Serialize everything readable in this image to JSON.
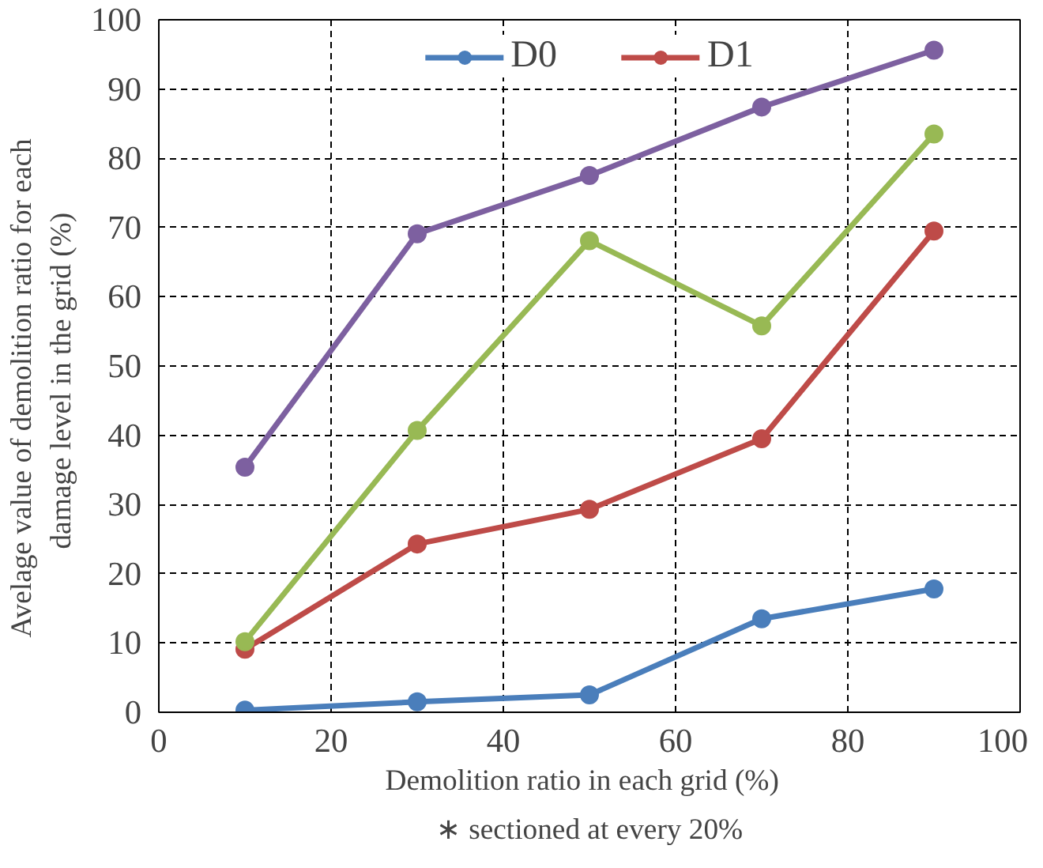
{
  "chart_data": {
    "type": "line",
    "xlabel": "Demolition  ratio in each grid  (%)",
    "ylabel": "Avelage  value  of  demolition  ratio  for  each\ndamage level  in  the  grid  (%)",
    "annotations": [
      "∗ sectioned at every 20%"
    ],
    "x": [
      10,
      30,
      50,
      70,
      90
    ],
    "series": [
      {
        "name": "D0",
        "color": "#4a7ebb",
        "values": [
          0.3,
          1.5,
          2.5,
          13.5,
          17.8
        ]
      },
      {
        "name": "D1",
        "color": "#be4b48",
        "values": [
          9.1,
          24.3,
          29.3,
          39.5,
          69.5
        ]
      },
      {
        "color": "#98b954",
        "values": [
          10.2,
          40.7,
          68.1,
          55.8,
          83.5
        ]
      },
      {
        "color": "#7d60a0",
        "values": [
          35.4,
          69.1,
          77.5,
          87.4,
          95.6
        ]
      }
    ],
    "xlim": [
      0,
      100
    ],
    "ylim": [
      0,
      100
    ],
    "xticks": [
      0,
      20,
      40,
      60,
      80,
      100
    ],
    "yticks": [
      0,
      10,
      20,
      30,
      40,
      50,
      60,
      70,
      80,
      90,
      100
    ],
    "grid": true,
    "legend": "top",
    "marker": "circle",
    "line_style": "solid"
  }
}
